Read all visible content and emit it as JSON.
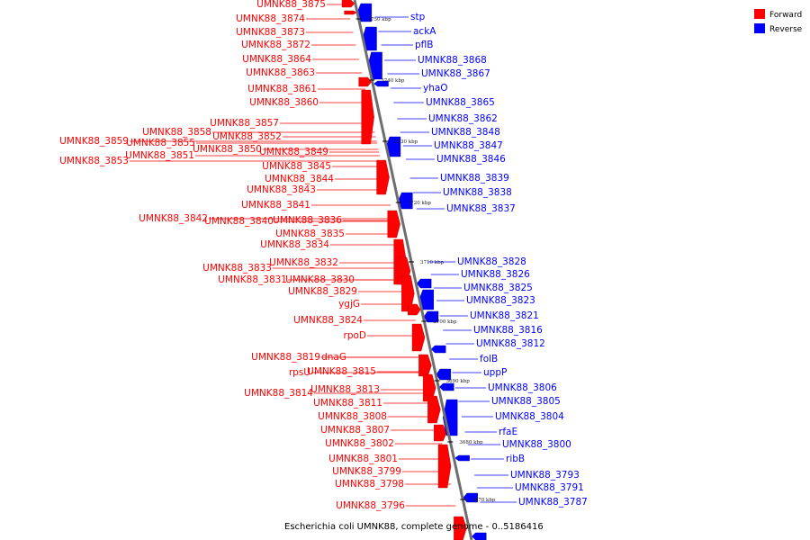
{
  "title": "Escherichia coli UMNK88, complete genome - 0..5186416",
  "legend": {
    "forward_label": "Forward",
    "reverse_label": "Reverse",
    "forward_color": "#ff0000",
    "reverse_color": "#0000ff"
  },
  "ticks": [
    "3750 kbp",
    "3740 kbp",
    "3730 kbp",
    "3720 kbp",
    "3710 kbp",
    "3700 kbp",
    "3690 kbp",
    "3680 kbp",
    "3670 kbp"
  ],
  "forward_labels": [
    "UMNK88_3875",
    "UMNK88_3874",
    "UMNK88_3873",
    "UMNK88_3872",
    "UMNK88_3864",
    "UMNK88_3863",
    "UMNK88_3861",
    "UMNK88_3860",
    "UMNK88_3857",
    "UMNK88_3858",
    "UMNK88_3852",
    "UMNK88_3859",
    "UMNK88_3855",
    "UMNK88_3850",
    "UMNK88_3849",
    "UMNK88_3851",
    "UMNK88_3853",
    "UMNK88_3845",
    "UMNK88_3844",
    "UMNK88_3843",
    "UMNK88_3841",
    "UMNK88_3842",
    "UMNK88_3840",
    "UMNK88_3836",
    "UMNK88_3835",
    "UMNK88_3834",
    "UMNK88_3832",
    "UMNK88_3833",
    "UMNK88_3830",
    "UMNK88_3831",
    "UMNK88_3829",
    "ygjG",
    "UMNK88_3824",
    "rpoD",
    "UMNK88_3819",
    "dnaG",
    "rpsU",
    "UMNK88_3815",
    "UMNK88_3813",
    "UMNK88_3814",
    "UMNK88_3811",
    "UMNK88_3808",
    "UMNK88_3807",
    "UMNK88_3802",
    "UMNK88_3801",
    "UMNK88_3799",
    "UMNK88_3798",
    "UMNK88_3796"
  ],
  "reverse_labels": [
    "stp",
    "ackA",
    "pflB",
    "UMNK88_3868",
    "UMNK88_3867",
    "yhaO",
    "UMNK88_3865",
    "UMNK88_3862",
    "UMNK88_3848",
    "UMNK88_3847",
    "UMNK88_3846",
    "UMNK88_3839",
    "UMNK88_3838",
    "UMNK88_3837",
    "UMNK88_3828",
    "UMNK88_3826",
    "UMNK88_3825",
    "UMNK88_3823",
    "UMNK88_3821",
    "UMNK88_3816",
    "UMNK88_3812",
    "folB",
    "uppP",
    "UMNK88_3806",
    "UMNK88_3805",
    "UMNK88_3804",
    "rfaE",
    "UMNK88_3800",
    "ribB",
    "UMNK88_3793",
    "UMNK88_3791",
    "UMNK88_3787"
  ]
}
